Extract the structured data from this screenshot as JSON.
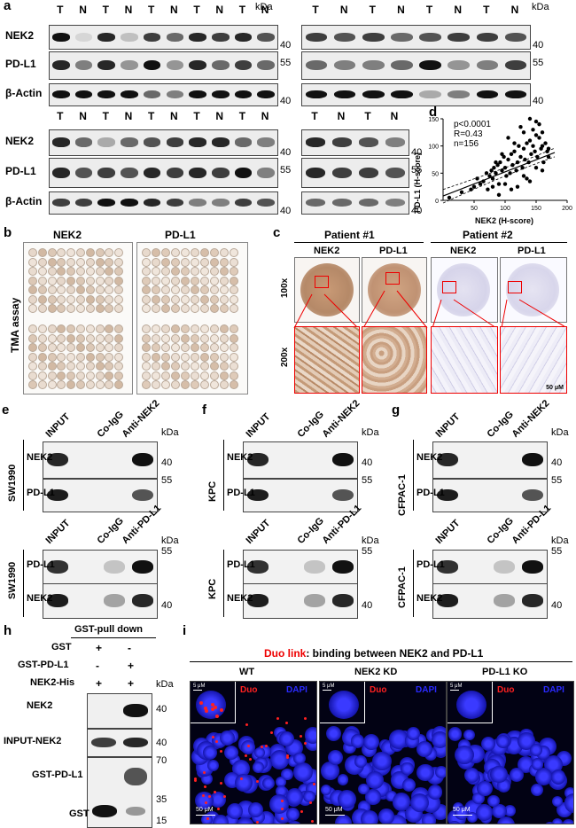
{
  "panels": {
    "a": "a",
    "b": "b",
    "c": "c",
    "d": "d",
    "e": "e",
    "f": "f",
    "g": "g",
    "h": "h",
    "i": "i"
  },
  "kda": "kDa",
  "a": {
    "lanes_top_left": [
      "T",
      "N",
      "T",
      "N",
      "T",
      "N",
      "T",
      "N",
      "T",
      "N"
    ],
    "lanes_top_right": [
      "T",
      "N",
      "T",
      "N",
      "T",
      "N",
      "T",
      "N"
    ],
    "lanes_bottom_left": [
      "T",
      "N",
      "T",
      "N",
      "T",
      "N",
      "T",
      "N",
      "T",
      "N"
    ],
    "lanes_bottom_right": [
      "T",
      "N",
      "T",
      "N"
    ],
    "rows": [
      "NEK2",
      "PD-L1",
      "β-Actin"
    ],
    "mw": {
      "nek2": "40",
      "pdl1": "55",
      "actin": "40"
    }
  },
  "d": {
    "stats": [
      "p<0.0001",
      "R=0.43",
      "n=156"
    ],
    "xlabel": "NEK2 (H-score)",
    "ylabel": "PD-L1 (H-score)",
    "xticks": [
      "50",
      "100",
      "150",
      "200"
    ],
    "yticks": [
      "0",
      "50",
      "100",
      "150"
    ]
  },
  "b": {
    "titles": [
      "NEK2",
      "PD-L1"
    ],
    "side": "TMA assay"
  },
  "c": {
    "patients": [
      "Patient #1",
      "Patient #2"
    ],
    "markers": [
      "NEK2",
      "PD-L1",
      "NEK2",
      "PD-L1"
    ],
    "mags": [
      "100x",
      "200x"
    ],
    "scale": "50 μM"
  },
  "ip": {
    "cols": [
      "INPUT",
      "Co-IgG",
      "Anti-NEK2"
    ],
    "cols2": [
      "INPUT",
      "Co-IgG",
      "Anti-PD-L1"
    ],
    "rowsA": [
      "NEK2",
      "PD-L1"
    ],
    "rowsB": [
      "PD-L1",
      "NEK2"
    ],
    "mwA": [
      "40",
      "55"
    ],
    "mwB": [
      "55",
      "40"
    ],
    "cells": {
      "e": "SW1990",
      "f": "KPC",
      "g": "CFPAC-1"
    }
  },
  "h": {
    "title": "GST-pull down",
    "conds": [
      "GST",
      "GST-PD-L1",
      "NEK2-His"
    ],
    "signs": [
      [
        "+",
        "-"
      ],
      [
        "-",
        "+"
      ],
      [
        "+",
        "+"
      ]
    ],
    "rows": [
      "NEK2",
      "INPUT-NEK2",
      "GST-PD-L1",
      "GST"
    ],
    "mw": [
      "40",
      "40",
      "70",
      "35",
      "15"
    ]
  },
  "i": {
    "title_red": "Duo link",
    "title_rest": ": binding between NEK2 and PD-L1",
    "groups": [
      "WT",
      "NEK2 KD",
      "PD-L1 KO"
    ],
    "duo": "Duo",
    "dapi": "DAPI",
    "inset_scale": "5 μM",
    "scale": "50 μM"
  },
  "chart_data": {
    "type": "scatter",
    "xlabel": "NEK2 (H-score)",
    "ylabel": "PD-L1 (H-score)",
    "xlim": [
      0,
      200
    ],
    "ylim": [
      0,
      150
    ],
    "annotations": [
      "p<0.0001",
      "R=0.43",
      "n=156"
    ],
    "x": [
      10,
      30,
      45,
      50,
      55,
      60,
      65,
      70,
      72,
      75,
      78,
      80,
      82,
      85,
      88,
      90,
      92,
      95,
      98,
      100,
      102,
      105,
      108,
      110,
      112,
      115,
      118,
      120,
      122,
      125,
      128,
      130,
      132,
      135,
      138,
      140,
      142,
      145,
      148,
      150,
      152,
      155,
      158,
      160,
      162,
      165,
      168,
      170,
      100,
      110,
      120,
      130,
      140,
      150,
      160,
      90,
      80,
      125,
      135,
      145,
      155,
      115,
      105,
      95,
      85,
      140,
      150,
      160,
      170,
      130
    ],
    "y": [
      5,
      15,
      20,
      25,
      40,
      30,
      35,
      50,
      20,
      45,
      55,
      40,
      60,
      50,
      65,
      30,
      70,
      55,
      80,
      60,
      45,
      75,
      50,
      85,
      65,
      90,
      55,
      70,
      100,
      80,
      60,
      95,
      75,
      105,
      70,
      110,
      85,
      100,
      90,
      120,
      80,
      115,
      95,
      125,
      70,
      105,
      90,
      80,
      30,
      20,
      25,
      45,
      35,
      60,
      55,
      10,
      25,
      135,
      40,
      130,
      140,
      105,
      115,
      85,
      70,
      150,
      145,
      100,
      95,
      125
    ]
  }
}
